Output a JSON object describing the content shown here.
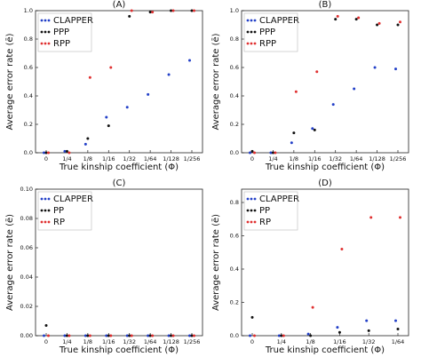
{
  "chart_data": [
    {
      "type": "scatter",
      "title": "(A)",
      "x_label": "True kinship coefficient (Φ)",
      "y_label": "Average error rate (ē)",
      "categories": [
        "0",
        "1/4",
        "1/8",
        "1/16",
        "1/32",
        "1/64",
        "1/128",
        "1/256"
      ],
      "series": [
        {
          "name": "CLAPPER",
          "color": "#2340c8",
          "values": [
            0.0,
            0.01,
            0.06,
            0.25,
            0.32,
            0.41,
            0.55,
            0.65
          ]
        },
        {
          "name": "PPP",
          "color": "#111111",
          "values": [
            0.0,
            0.01,
            0.1,
            0.19,
            0.96,
            0.99,
            1.0,
            1.0
          ]
        },
        {
          "name": "RPP",
          "color": "#e03030",
          "values": [
            0.0,
            0.0,
            0.53,
            0.6,
            1.0,
            0.99,
            1.0,
            1.0
          ]
        }
      ],
      "ylim": [
        0,
        1
      ],
      "yticks": [
        {
          "value": 0,
          "label": "0.0"
        },
        0.2,
        0.4,
        0.6,
        0.8,
        {
          "value": 1,
          "label": "1.0"
        }
      ],
      "legend": "upper left"
    },
    {
      "type": "scatter",
      "title": "(B)",
      "x_label": "True kinship coefficient (Φ)",
      "y_label": "Average error rate (ē)",
      "categories": [
        "0",
        "1/4",
        "1/8",
        "1/16",
        "1/32",
        "1/64",
        "1/128",
        "1/256"
      ],
      "series": [
        {
          "name": "CLAPPER",
          "color": "#2340c8",
          "values": [
            0.0,
            0.0,
            0.07,
            0.17,
            0.34,
            0.45,
            0.6,
            0.59
          ]
        },
        {
          "name": "PPP",
          "color": "#111111",
          "values": [
            0.01,
            0.0,
            0.14,
            0.16,
            0.94,
            0.94,
            0.9,
            0.9
          ]
        },
        {
          "name": "RPP",
          "color": "#e03030",
          "values": [
            0.0,
            0.0,
            0.43,
            0.57,
            0.96,
            0.95,
            0.91,
            0.92
          ]
        }
      ],
      "ylim": [
        0,
        1
      ],
      "yticks": [
        {
          "value": 0,
          "label": "0.0"
        },
        0.2,
        0.4,
        0.6,
        0.8,
        {
          "value": 1,
          "label": "1.0"
        }
      ],
      "legend": "upper left"
    },
    {
      "type": "scatter",
      "title": "(C)",
      "x_label": "True kinship coefficient (Φ)",
      "y_label": "Average error rate (ē)",
      "categories": [
        "0",
        "1/4",
        "1/8",
        "1/16",
        "1/32",
        "1/64",
        "1/128",
        "1/256"
      ],
      "series": [
        {
          "name": "CLAPPER",
          "color": "#2340c8",
          "values": [
            0,
            0,
            0,
            0,
            0,
            0,
            0,
            0
          ]
        },
        {
          "name": "PP",
          "color": "#111111",
          "values": [
            0.007,
            0,
            0,
            0,
            0,
            0,
            0,
            0
          ]
        },
        {
          "name": "RP",
          "color": "#e03030",
          "values": [
            0,
            0,
            0,
            0,
            0,
            0,
            0,
            0
          ]
        }
      ],
      "ylim": [
        0,
        0.1
      ],
      "yticks": [
        {
          "value": 0,
          "label": "0.00"
        },
        0.02,
        0.04,
        0.06,
        0.08,
        {
          "value": 0.1,
          "label": "0.10"
        }
      ],
      "legend": "upper left"
    },
    {
      "type": "scatter",
      "title": "(D)",
      "x_label": "True kinship coefficient (Φ)",
      "y_label": "Average error rate (ē)",
      "categories": [
        "0",
        "1/4",
        "1/8",
        "1/16",
        "1/32",
        "1/64"
      ],
      "series": [
        {
          "name": "CLAPPER",
          "color": "#2340c8",
          "values": [
            0.0,
            0.0,
            0.01,
            0.05,
            0.09,
            0.09
          ]
        },
        {
          "name": "PP",
          "color": "#111111",
          "values": [
            0.11,
            0.0,
            0.0,
            0.02,
            0.03,
            0.04
          ]
        },
        {
          "name": "RP",
          "color": "#e03030",
          "values": [
            0.0,
            0.0,
            0.17,
            0.52,
            0.71,
            0.71
          ]
        }
      ],
      "ylim": [
        0,
        0.88
      ],
      "yticks": [
        {
          "value": 0,
          "label": "0.0"
        },
        0.2,
        0.4,
        0.6,
        0.8
      ],
      "legend": "upper left"
    }
  ]
}
